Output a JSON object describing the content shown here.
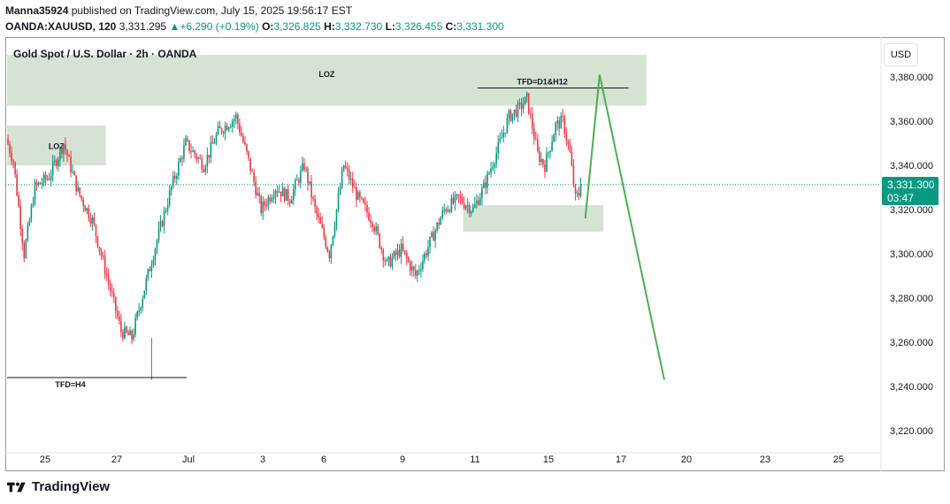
{
  "header": {
    "author": "Manna35924",
    "published_text": " published on TradingView.com, July 15, 2025 19:56:17 EST",
    "symbol_line": "OANDA:XAUUSD, 120",
    "last": "3,331.295",
    "change": "+6.290 (+0.19%)",
    "o_label": "O:",
    "o_val": "3,326.825",
    "h_label": "H:",
    "h_val": "3,332.730",
    "l_label": "L:",
    "l_val": "3,326.455",
    "c_label": "C:",
    "c_val": "3,331.300"
  },
  "chart_title": "Gold Spot / U.S. Dollar · 2h · OANDA",
  "currency": "USD",
  "price_tag": {
    "price": "3,331.300",
    "countdown": "03:47"
  },
  "footer": {
    "brand": "TradingView"
  },
  "colors": {
    "up": "#089981",
    "down": "#f23645",
    "zone": "#d5e3d3",
    "projection": "#4caf50"
  },
  "chart_data": {
    "type": "candlestick",
    "ylim": [
      3210,
      3395
    ],
    "y_ticks": [
      3220,
      3240,
      3260,
      3280,
      3300,
      3320,
      3340,
      3360,
      3380
    ],
    "y_tick_labels": [
      "3,220.000",
      "3,240.000",
      "3,260.000",
      "3,280.000",
      "3,300.000",
      "3,320.000",
      "3,340.000",
      "3,360.000",
      "3,380.000"
    ],
    "x_labels": [
      "25",
      "27",
      "Jul",
      "3",
      "6",
      "9",
      "11",
      "15",
      "17",
      "20",
      "23",
      "25"
    ],
    "last_price": 3331.3,
    "anchors": [
      [
        0,
        3352
      ],
      [
        4,
        3342
      ],
      [
        10,
        3300
      ],
      [
        16,
        3330
      ],
      [
        24,
        3335
      ],
      [
        32,
        3350
      ],
      [
        40,
        3328
      ],
      [
        48,
        3315
      ],
      [
        56,
        3290
      ],
      [
        64,
        3265
      ],
      [
        70,
        3262
      ],
      [
        74,
        3275
      ],
      [
        82,
        3300
      ],
      [
        92,
        3330
      ],
      [
        100,
        3350
      ],
      [
        110,
        3340
      ],
      [
        118,
        3355
      ],
      [
        128,
        3362
      ],
      [
        134,
        3345
      ],
      [
        142,
        3320
      ],
      [
        150,
        3330
      ],
      [
        158,
        3325
      ],
      [
        166,
        3340
      ],
      [
        172,
        3320
      ],
      [
        180,
        3300
      ],
      [
        188,
        3340
      ],
      [
        196,
        3325
      ],
      [
        204,
        3315
      ],
      [
        212,
        3295
      ],
      [
        220,
        3302
      ],
      [
        228,
        3290
      ],
      [
        236,
        3305
      ],
      [
        244,
        3320
      ],
      [
        252,
        3325
      ],
      [
        260,
        3320
      ],
      [
        266,
        3330
      ],
      [
        274,
        3348
      ],
      [
        280,
        3362
      ],
      [
        286,
        3366
      ],
      [
        290,
        3370
      ],
      [
        296,
        3345
      ],
      [
        300,
        3340
      ],
      [
        306,
        3358
      ],
      [
        310,
        3360
      ],
      [
        314,
        3345
      ],
      [
        317,
        3325
      ],
      [
        320,
        3328
      ]
    ],
    "candle_count": 320,
    "zones": [
      {
        "label": "LOZ",
        "t0": 0,
        "t1": 356,
        "p0": 3367,
        "p1": 3390
      },
      {
        "label": "LOZ",
        "t0": 0,
        "t1": 55,
        "p0": 3340,
        "p1": 3358
      },
      {
        "label": "",
        "t0": 254,
        "t1": 332,
        "p0": 3310,
        "p1": 3322
      }
    ],
    "levels": [
      {
        "label": "TFD=D1&H12",
        "t0": 262,
        "t1": 346,
        "price": 3375
      },
      {
        "label": "TFD=H4",
        "t0": 0,
        "t1": 100,
        "price": 3244
      }
    ],
    "projection": [
      [
        322,
        3316
      ],
      [
        330,
        3381
      ],
      [
        366,
        3243
      ]
    ]
  }
}
